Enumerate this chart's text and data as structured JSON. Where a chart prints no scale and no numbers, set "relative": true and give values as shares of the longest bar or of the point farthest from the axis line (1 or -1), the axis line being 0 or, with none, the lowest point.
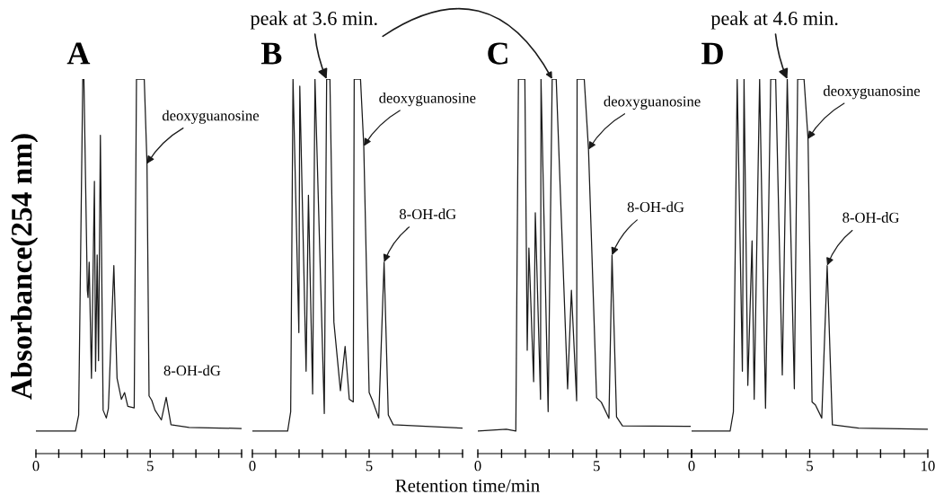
{
  "chart_data": [
    {
      "type": "line",
      "title": "A",
      "relative": true,
      "ylabel": "Absorbance(254 nm)",
      "xlim": [
        0,
        9
      ],
      "xticks": [
        0,
        {
          "value": 1,
          "label": null
        },
        {
          "value": 2,
          "label": null
        },
        {
          "value": 3,
          "label": null
        },
        {
          "value": 4,
          "label": null
        },
        5,
        {
          "value": 6,
          "label": null
        },
        {
          "value": 7,
          "label": null
        },
        {
          "value": 8,
          "label": null
        },
        {
          "value": 9,
          "label": null
        }
      ],
      "tick_labels": "x",
      "grid": false,
      "legend": false,
      "series": [
        {
          "color": "#1a1a1a",
          "x": [
            0,
            1.73,
            1.87,
            2.05,
            2.1,
            2.25,
            2.28,
            2.33,
            2.43,
            2.56,
            2.61,
            2.68,
            2.74,
            2.82,
            2.94,
            3.08,
            3.17,
            3.41,
            3.55,
            3.74,
            3.88,
            4.02,
            4.3,
            4.4,
            4.74,
            4.86,
            4.95,
            5.07,
            5.21,
            5.49,
            5.7,
            5.91,
            6.7,
            9.0
          ],
          "values": [
            0.06,
            0.06,
            0.103,
            1,
            1,
            0.436,
            0.417,
            0.511,
            0.201,
            0.727,
            0.22,
            0.53,
            0.248,
            0.85,
            0.116,
            0.095,
            0.12,
            0.502,
            0.201,
            0.145,
            0.163,
            0.126,
            0.122,
            1,
            1,
            0.774,
            0.154,
            0.142,
            0.116,
            0.09,
            0.15,
            0.077,
            0.07,
            0.067
          ]
        }
      ],
      "annotations": [
        {
          "text": "deoxyguanosine",
          "x": 4.86,
          "y": 0.774
        },
        "8-OH-dG"
      ]
    },
    {
      "type": "line",
      "title": "B",
      "relative": true,
      "xlabel": "Retention time/min",
      "xlim": [
        0,
        9
      ],
      "xticks": [
        0,
        {
          "value": 1,
          "label": null
        },
        {
          "value": 2,
          "label": null
        },
        {
          "value": 3,
          "label": null
        },
        {
          "value": 4,
          "label": null
        },
        5,
        {
          "value": 6,
          "label": null
        },
        {
          "value": 7,
          "label": null
        },
        {
          "value": 8,
          "label": null
        },
        {
          "value": 9,
          "label": null
        }
      ],
      "tick_labels": "x",
      "grid": false,
      "legend": false,
      "series": [
        {
          "color": "#1a1a1a",
          "x": [
            0,
            1.51,
            1.64,
            1.74,
            1.99,
            2.03,
            2.3,
            2.4,
            2.58,
            2.68,
            3.08,
            3.18,
            3.32,
            3.49,
            3.77,
            3.97,
            4.15,
            4.32,
            4.36,
            4.63,
            4.77,
            5.0,
            5.14,
            5.41,
            5.64,
            5.82,
            6.03,
            9.0
          ],
          "values": [
            0.06,
            0.06,
            0.112,
            1,
            0.323,
            0.981,
            0.22,
            0.69,
            0.159,
            1,
            0.107,
            1,
            1,
            0.351,
            0.168,
            0.286,
            0.145,
            0.138,
            1,
            1,
            0.821,
            0.163,
            0.142,
            0.095,
            0.511,
            0.103,
            0.077,
            0.068
          ]
        }
      ],
      "annotations": [
        {
          "text": "peak at 3.6 min.",
          "x": 3.18,
          "y": 1
        },
        {
          "text": "deoxyguanosine",
          "x": 4.77,
          "y": 0.821
        },
        {
          "text": "8-OH-dG",
          "x": 5.64,
          "y": 0.511
        }
      ]
    },
    {
      "type": "line",
      "title": "C",
      "relative": true,
      "xlim": [
        0,
        9
      ],
      "xticks": [
        0,
        {
          "value": 1,
          "label": null
        },
        {
          "value": 2,
          "label": null
        },
        {
          "value": 3,
          "label": null
        },
        {
          "value": 4,
          "label": null
        },
        5,
        {
          "value": 6,
          "label": null
        },
        {
          "value": 7,
          "label": null
        },
        {
          "value": 8,
          "label": null
        },
        {
          "value": 9,
          "label": null
        }
      ],
      "tick_labels": "x",
      "grid": false,
      "legend": false,
      "series": [
        {
          "color": "#1a1a1a",
          "x": [
            0,
            1.2,
            1.6,
            1.71,
            1.98,
            2.08,
            2.15,
            2.35,
            2.42,
            2.64,
            2.66,
            2.96,
            3.13,
            3.3,
            3.78,
            3.94,
            4.16,
            4.18,
            4.48,
            4.66,
            5.0,
            5.2,
            5.52,
            5.65,
            5.84,
            6.09,
            8.94
          ],
          "values": [
            0.06,
            0.065,
            0.06,
            1,
            1,
            0.276,
            0.549,
            0.192,
            0.643,
            0.145,
            1,
            0.112,
            1,
            1,
            0.173,
            0.436,
            0.141,
            1,
            1,
            0.812,
            0.149,
            0.137,
            0.094,
            0.53,
            0.098,
            0.074,
            0.073
          ]
        }
      ],
      "annotations": [
        {
          "text": "deoxyguanosine",
          "x": 4.66,
          "y": 0.812
        },
        {
          "text": "8-OH-dG",
          "x": 5.65,
          "y": 0.53
        }
      ]
    },
    {
      "type": "line",
      "title": "D",
      "relative": true,
      "xlim": [
        0,
        10
      ],
      "xticks": [
        0,
        {
          "value": 1,
          "label": null
        },
        {
          "value": 2,
          "label": null
        },
        {
          "value": 3,
          "label": null
        },
        {
          "value": 4,
          "label": null
        },
        5,
        {
          "value": 6,
          "label": null
        },
        {
          "value": 7,
          "label": null
        },
        {
          "value": 8,
          "label": null
        },
        {
          "value": 9,
          "label": null
        },
        10
      ],
      "tick_labels": "x",
      "grid": false,
      "legend": false,
      "series": [
        {
          "color": "#1a1a1a",
          "x": [
            0,
            1.63,
            1.77,
            1.93,
            2.15,
            2.22,
            2.38,
            2.56,
            2.65,
            2.88,
            3.13,
            3.35,
            3.56,
            3.84,
            4.05,
            4.35,
            4.49,
            4.76,
            4.93,
            5.1,
            5.24,
            5.51,
            5.74,
            5.96,
            7.07,
            10
          ],
          "values": [
            0.06,
            0.06,
            0.112,
            1,
            0.22,
            1,
            0.182,
            0.568,
            0.145,
            1,
            0.121,
            1,
            1,
            0.21,
            1,
            0.173,
            1,
            1,
            0.84,
            0.138,
            0.13,
            0.095,
            0.502,
            0.077,
            0.068,
            0.065
          ]
        }
      ],
      "annotations": [
        {
          "text": "peak at 4.6 min.",
          "x": 4.05,
          "y": 1
        },
        {
          "text": "deoxyguanosine",
          "x": 4.93,
          "y": 0.84
        },
        {
          "text": "8-OH-dG",
          "x": 5.74,
          "y": 0.502
        }
      ]
    }
  ]
}
